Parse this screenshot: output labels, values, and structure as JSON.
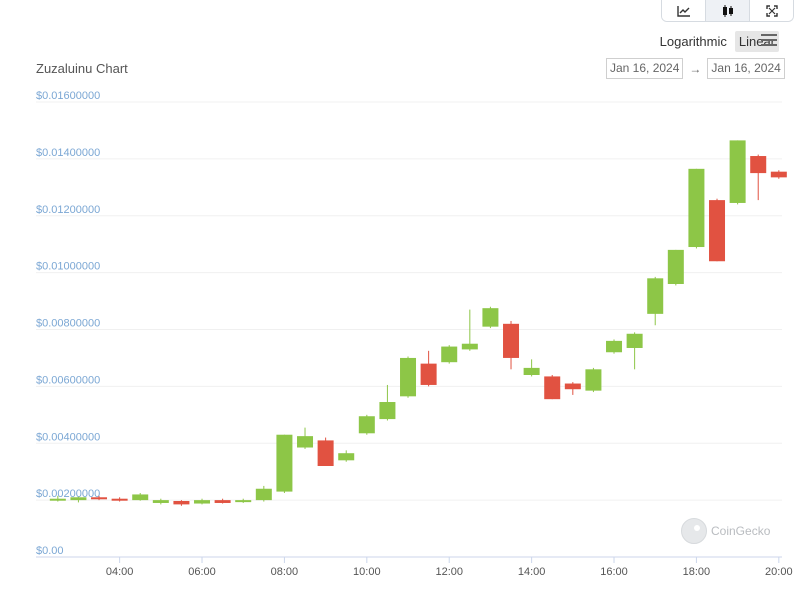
{
  "toolbar": {
    "buttons": [
      {
        "icon": "line-chart-icon",
        "active": false
      },
      {
        "icon": "candlestick-icon",
        "active": true
      },
      {
        "icon": "fullscreen-icon",
        "active": false
      }
    ]
  },
  "scale": {
    "logarithmic_label": "Logarithmic",
    "linear_label": "Linear",
    "selected": "Linear"
  },
  "chart_title": "Zuzaluinu Chart",
  "date_range": {
    "from": "Jan 16, 2024",
    "arrow": "→",
    "to": "Jan 16, 2024"
  },
  "watermark": "CoinGecko",
  "colors": {
    "up": "#8dc647",
    "down": "#e15241",
    "ytick": "#7ba7d4",
    "grid": "#f0f0f0"
  },
  "chart_data": {
    "type": "candlestick",
    "title": "Zuzaluinu Chart",
    "ylim": [
      0,
      0.016
    ],
    "y_ticks": [
      "$0.00",
      "$0.00200000",
      "$0.00400000",
      "$0.00600000",
      "$0.00800000",
      "$0.01000000",
      "$0.01200000",
      "$0.01400000",
      "$0.01600000"
    ],
    "x_ticks": [
      "04:00",
      "06:00",
      "08:00",
      "10:00",
      "12:00",
      "14:00",
      "16:00",
      "18:00",
      "20:00"
    ],
    "x_tick_hours": [
      4,
      6,
      8,
      10,
      12,
      14,
      16,
      18,
      20
    ],
    "xlim_hours": [
      2.0,
      20.35
    ],
    "grid": true,
    "candles": [
      {
        "t": 2.5,
        "o": 0.002,
        "h": 0.00215,
        "l": 0.00195,
        "c": 0.00205
      },
      {
        "t": 3.0,
        "o": 0.002,
        "h": 0.00212,
        "l": 0.00192,
        "c": 0.0021
      },
      {
        "t": 3.5,
        "o": 0.0021,
        "h": 0.00215,
        "l": 0.002,
        "c": 0.00205
      },
      {
        "t": 4.0,
        "o": 0.00205,
        "h": 0.0021,
        "l": 0.00195,
        "c": 0.002
      },
      {
        "t": 4.5,
        "o": 0.002,
        "h": 0.00225,
        "l": 0.00198,
        "c": 0.0022
      },
      {
        "t": 5.0,
        "o": 0.0019,
        "h": 0.00205,
        "l": 0.00185,
        "c": 0.002
      },
      {
        "t": 5.5,
        "o": 0.00197,
        "h": 0.002,
        "l": 0.0018,
        "c": 0.00185
      },
      {
        "t": 6.0,
        "o": 0.00188,
        "h": 0.00205,
        "l": 0.00185,
        "c": 0.002
      },
      {
        "t": 6.5,
        "o": 0.002,
        "h": 0.00205,
        "l": 0.00188,
        "c": 0.0019
      },
      {
        "t": 7.0,
        "o": 0.00195,
        "h": 0.00205,
        "l": 0.0019,
        "c": 0.002
      },
      {
        "t": 7.5,
        "o": 0.002,
        "h": 0.0025,
        "l": 0.00195,
        "c": 0.0024
      },
      {
        "t": 8.0,
        "o": 0.0023,
        "h": 0.0043,
        "l": 0.00225,
        "c": 0.0043
      },
      {
        "t": 8.5,
        "o": 0.00385,
        "h": 0.00455,
        "l": 0.0038,
        "c": 0.00425
      },
      {
        "t": 9.0,
        "o": 0.0041,
        "h": 0.0042,
        "l": 0.0032,
        "c": 0.0032
      },
      {
        "t": 9.5,
        "o": 0.0034,
        "h": 0.00375,
        "l": 0.00335,
        "c": 0.00365
      },
      {
        "t": 10.0,
        "o": 0.00435,
        "h": 0.005,
        "l": 0.0043,
        "c": 0.00495
      },
      {
        "t": 10.5,
        "o": 0.00485,
        "h": 0.00605,
        "l": 0.0048,
        "c": 0.00545
      },
      {
        "t": 11.0,
        "o": 0.00565,
        "h": 0.00705,
        "l": 0.0056,
        "c": 0.007
      },
      {
        "t": 11.5,
        "o": 0.0068,
        "h": 0.00725,
        "l": 0.006,
        "c": 0.00605
      },
      {
        "t": 12.0,
        "o": 0.00685,
        "h": 0.00745,
        "l": 0.0068,
        "c": 0.0074
      },
      {
        "t": 12.5,
        "o": 0.0073,
        "h": 0.0087,
        "l": 0.00725,
        "c": 0.0075
      },
      {
        "t": 13.0,
        "o": 0.0081,
        "h": 0.0088,
        "l": 0.00805,
        "c": 0.00875
      },
      {
        "t": 13.5,
        "o": 0.0082,
        "h": 0.0083,
        "l": 0.0066,
        "c": 0.007
      },
      {
        "t": 14.0,
        "o": 0.0064,
        "h": 0.00695,
        "l": 0.00635,
        "c": 0.00665
      },
      {
        "t": 14.5,
        "o": 0.00635,
        "h": 0.0064,
        "l": 0.00555,
        "c": 0.00555
      },
      {
        "t": 15.0,
        "o": 0.0061,
        "h": 0.00615,
        "l": 0.0057,
        "c": 0.0059
      },
      {
        "t": 15.5,
        "o": 0.00585,
        "h": 0.00665,
        "l": 0.0058,
        "c": 0.0066
      },
      {
        "t": 16.0,
        "o": 0.0072,
        "h": 0.00765,
        "l": 0.00715,
        "c": 0.0076
      },
      {
        "t": 16.5,
        "o": 0.00735,
        "h": 0.0079,
        "l": 0.0066,
        "c": 0.00785
      },
      {
        "t": 17.0,
        "o": 0.00855,
        "h": 0.00985,
        "l": 0.00815,
        "c": 0.0098
      },
      {
        "t": 17.5,
        "o": 0.0096,
        "h": 0.0108,
        "l": 0.00955,
        "c": 0.0108
      },
      {
        "t": 18.0,
        "o": 0.0109,
        "h": 0.01365,
        "l": 0.01085,
        "c": 0.01365
      },
      {
        "t": 18.5,
        "o": 0.01255,
        "h": 0.0126,
        "l": 0.0104,
        "c": 0.0104
      },
      {
        "t": 19.0,
        "o": 0.01245,
        "h": 0.01465,
        "l": 0.0124,
        "c": 0.01465
      },
      {
        "t": 19.5,
        "o": 0.0141,
        "h": 0.01415,
        "l": 0.01255,
        "c": 0.0135
      },
      {
        "t": 20.0,
        "o": 0.01355,
        "h": 0.0136,
        "l": 0.0133,
        "c": 0.01335
      }
    ]
  }
}
